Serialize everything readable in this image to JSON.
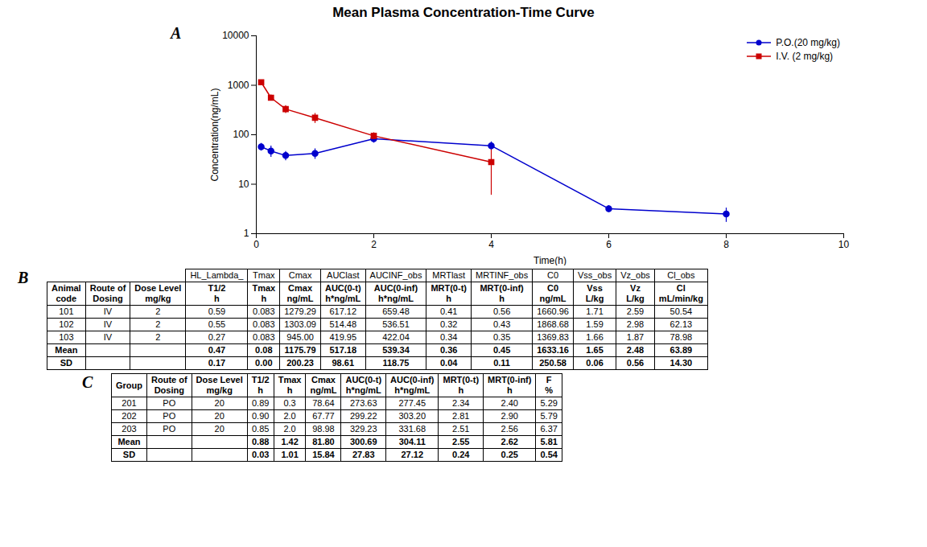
{
  "chart_data": [
    {
      "type": "line",
      "title": "Mean Plasma Concentration-Time Curve",
      "annotations": [
        "A"
      ],
      "xlabel": "Time(h)",
      "ylabel": "Concentration(ng/mL)",
      "series": [
        {
          "name": "P.O.(20 mg/kg)",
          "color": "#0000CD",
          "marker": "circle",
          "x": [
            0.083,
            0.25,
            0.5,
            1.0,
            2.0,
            4.0,
            6.0,
            8.0
          ],
          "values": [
            57.0,
            47.0,
            38.0,
            42.0,
            83.0,
            60.0,
            3.2,
            2.5
          ],
          "errors": [
            10.0,
            12.0,
            8.0,
            10.0,
            15.0,
            12.0,
            0.5,
            0.8
          ]
        },
        {
          "name": "I.V. (2 mg/kg)",
          "color": "#CC0000",
          "marker": "square",
          "x": [
            0.083,
            0.25,
            0.5,
            1.0,
            2.0,
            4.0
          ],
          "values": [
            1150.0,
            560.0,
            330.0,
            220.0,
            95.0,
            28.0
          ],
          "errors": [
            50.0,
            80.0,
            60.0,
            50.0,
            15.0,
            22.0
          ]
        }
      ],
      "xlim": [
        0,
        10
      ],
      "xticks": [
        0,
        2,
        4,
        6,
        8,
        10
      ],
      "ylim": [
        1,
        10000
      ],
      "yticks": [
        1,
        10,
        100,
        1000,
        10000
      ],
      "log": "y",
      "grid": false,
      "legend": "upper right"
    },
    {
      "type": "table",
      "annotations": [
        "B"
      ],
      "header_rows": [
        [
          "",
          "",
          "",
          "HL_Lambda_",
          "Tmax",
          "Cmax",
          "AUClast",
          "AUCINF_obs",
          "MRTlast",
          "MRTINF_obs",
          "C0",
          "Vss_obs",
          "Vz_obs",
          "Cl_obs"
        ],
        [
          "Animal\ncode",
          "Route of\nDosing",
          "Dose Level\nmg/kg",
          "T1/2\nh",
          "Tmax\nh",
          "Cmax\nng/mL",
          "AUC(0-t)\nh*ng/mL",
          "AUC(0-inf)\nh*ng/mL",
          "MRT(0-t)\nh",
          "MRT(0-inf)\nh",
          "C0\nng/mL",
          "Vss\nL/kg",
          "Vz\nL/kg",
          "Cl\nmL/min/kg"
        ]
      ],
      "rows": [
        [
          "101",
          "IV",
          "2",
          "0.59",
          "0.083",
          "1279.29",
          "617.12",
          "659.48",
          "0.41",
          "0.56",
          "1660.96",
          "1.71",
          "2.59",
          "50.54"
        ],
        [
          "102",
          "IV",
          "2",
          "0.55",
          "0.083",
          "1303.09",
          "514.48",
          "536.51",
          "0.32",
          "0.43",
          "1868.68",
          "1.59",
          "2.98",
          "62.13"
        ],
        [
          "103",
          "IV",
          "2",
          "0.27",
          "0.083",
          "945.00",
          "419.95",
          "422.04",
          "0.34",
          "0.35",
          "1369.83",
          "1.66",
          "1.87",
          "78.98"
        ]
      ],
      "summary_rows": [
        [
          "Mean",
          "",
          "",
          "0.47",
          "0.08",
          "1175.79",
          "517.18",
          "539.34",
          "0.36",
          "0.45",
          "1633.16",
          "1.65",
          "2.48",
          "63.89"
        ],
        [
          "SD",
          "",
          "",
          "0.17",
          "0.00",
          "200.23",
          "98.61",
          "118.75",
          "0.04",
          "0.11",
          "250.58",
          "0.06",
          "0.56",
          "14.30"
        ]
      ]
    },
    {
      "type": "table",
      "annotations": [
        "C"
      ],
      "header_rows": [
        [
          "Group",
          "Route of\nDosing",
          "Dose Level\nmg/kg",
          "T1/2\nh",
          "Tmax\nh",
          "Cmax\nng/mL",
          "AUC(0-t)\nh*ng/mL",
          "AUC(0-inf)\nh*ng/mL",
          "MRT(0-t)\nh",
          "MRT(0-inf)\nh",
          "F\n%"
        ]
      ],
      "rows": [
        [
          "201",
          "PO",
          "20",
          "0.89",
          "0.3",
          "78.64",
          "273.63",
          "277.45",
          "2.34",
          "2.40",
          "5.29"
        ],
        [
          "202",
          "PO",
          "20",
          "0.90",
          "2.0",
          "67.77",
          "299.22",
          "303.20",
          "2.81",
          "2.90",
          "5.79"
        ],
        [
          "203",
          "PO",
          "20",
          "0.85",
          "2.0",
          "98.98",
          "329.23",
          "331.68",
          "2.51",
          "2.56",
          "6.37"
        ]
      ],
      "summary_rows": [
        [
          "Mean",
          "",
          "",
          "0.88",
          "1.42",
          "81.80",
          "300.69",
          "304.11",
          "2.55",
          "2.62",
          "5.81"
        ],
        [
          "SD",
          "",
          "",
          "0.03",
          "1.01",
          "15.84",
          "27.83",
          "27.12",
          "0.24",
          "0.25",
          "0.54"
        ]
      ]
    }
  ]
}
